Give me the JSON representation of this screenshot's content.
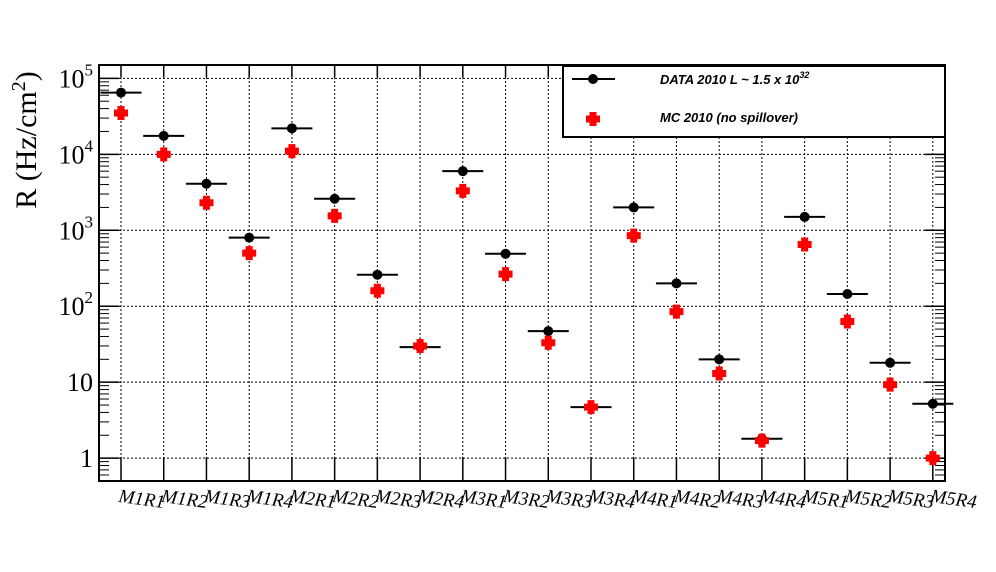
{
  "chart_data": {
    "type": "scatter",
    "y_scale": "log",
    "ylim": [
      0.5,
      150000
    ],
    "grid": true,
    "legend_position": "top-right",
    "ylabel": {
      "base": "R (Hz/cm",
      "sup": "2",
      "end": ")"
    },
    "categories": [
      "M1R1",
      "M1R2",
      "M1R3",
      "M1R4",
      "M2R1",
      "M2R2",
      "M2R3",
      "M2R4",
      "M3R1",
      "M3R2",
      "M3R3",
      "M3R4",
      "M4R1",
      "M4R2",
      "M4R3",
      "M4R4",
      "M5R1",
      "M5R2",
      "M5R3",
      "M5R4"
    ],
    "y_ticks": [
      {
        "value": 1,
        "base": "1",
        "sup": ""
      },
      {
        "value": 10,
        "base": "10",
        "sup": ""
      },
      {
        "value": 100,
        "base": "10",
        "sup": "2"
      },
      {
        "value": 1000,
        "base": "10",
        "sup": "3"
      },
      {
        "value": 10000,
        "base": "10",
        "sup": "4"
      },
      {
        "value": 100000,
        "base": "10",
        "sup": "5"
      }
    ],
    "series": [
      {
        "name": "DATA 2010 L ~ 1.5 x 10",
        "name_sup": "32",
        "marker": "circle",
        "color": "#000000",
        "x_error": true,
        "values": [
          65000,
          17500,
          4100,
          800,
          22000,
          2600,
          260,
          29,
          6000,
          490,
          47,
          4.7,
          2000,
          200,
          20,
          1.8,
          1500,
          145,
          18,
          5.2
        ]
      },
      {
        "name": "MC 2010 (no spillover)",
        "name_sup": "",
        "marker": "cross",
        "color": "#ff0000",
        "x_error": false,
        "values": [
          35000,
          10000,
          2300,
          500,
          11000,
          1550,
          160,
          30,
          3300,
          265,
          33,
          4.7,
          850,
          85,
          13,
          1.7,
          650,
          63,
          9.3,
          1.0
        ]
      }
    ]
  }
}
